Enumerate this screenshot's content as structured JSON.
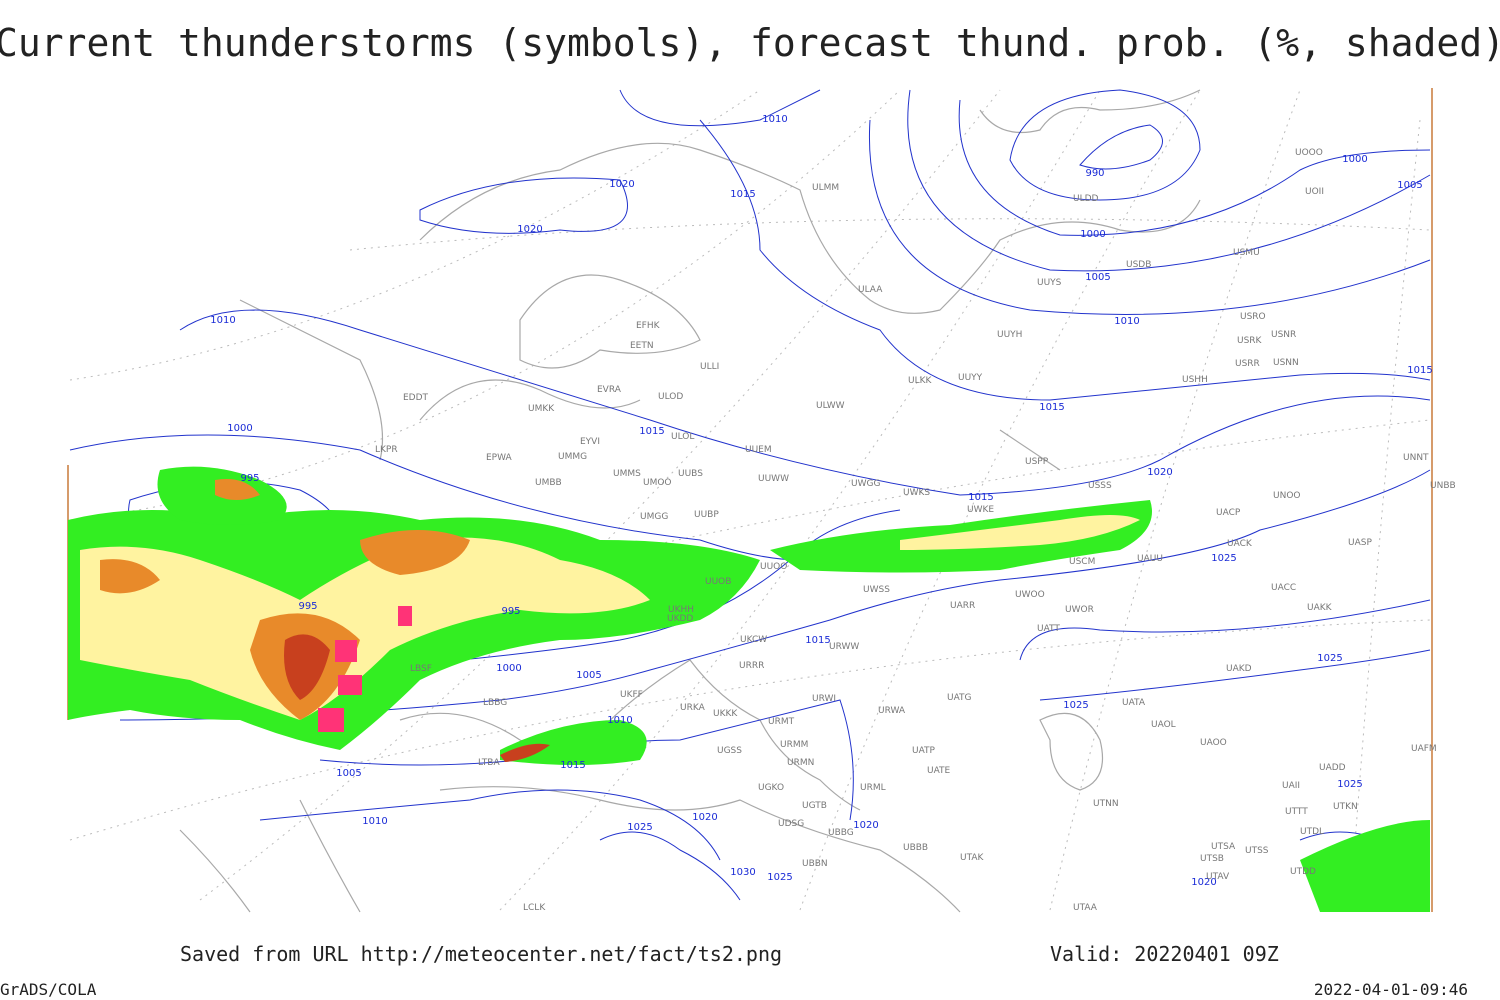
{
  "title": "Current thunderstorms (symbols), forecast thund. prob. (%, shaded)",
  "footer": {
    "saved": "Saved from URL http://meteocenter.net/fact/ts2.png",
    "valid": "Valid: 20220401 09Z",
    "software": "GrADS/COLA",
    "timestamp": "2022-04-01-09:46"
  },
  "isobar_labels": [
    1010,
    1020,
    1015,
    1020,
    990,
    1000,
    1005,
    1000,
    1005,
    1010,
    1015,
    1015,
    1010,
    1000,
    995,
    1015,
    1015,
    1020,
    1025,
    995,
    995,
    1015,
    1000,
    1005,
    1025,
    1025,
    1010,
    1005,
    1015,
    1010,
    1020,
    1025,
    1020,
    1025,
    1030,
    1025,
    1020
  ],
  "stations": [
    "ULMM",
    "ULAA",
    "EFHK",
    "EETN",
    "ULLI",
    "EVRA",
    "ULOD",
    "EDDT",
    "UMKK",
    "ULWW",
    "ULKK",
    "UUYY",
    "UUYH",
    "UUYS",
    "USDB",
    "USMU",
    "UOOO",
    "UOII",
    "ULDD",
    "USRO",
    "USNR",
    "USRK",
    "USRR",
    "USNN",
    "USHH",
    "USPP",
    "UUEM",
    "EYVI",
    "EPWA",
    "UMMG",
    "ULOL",
    "LKPR",
    "UMMS",
    "UUBS",
    "UMOO",
    "UUWW",
    "UWGG",
    "UWKS",
    "USSS",
    "UNNT",
    "UNBB",
    "UMBB",
    "UNOO",
    "UWKE",
    "UACP",
    "UMGG",
    "UUBP",
    "UACK",
    "UASP",
    "UAUU",
    "USCM",
    "UUOO",
    "UUOB",
    "UWSS",
    "UACC",
    "UWOO",
    "UARR",
    "UAKK",
    "UWOR",
    "UKHH",
    "UKDD",
    "UATT",
    "UKCW",
    "URWW",
    "URRR",
    "UAKD",
    "LBSF",
    "UKFF",
    "URKA",
    "URWI",
    "UATG",
    "UATA",
    "UKKK",
    "LBBG",
    "URMT",
    "URWA",
    "UAOL",
    "UAOO",
    "URMM",
    "UGSS",
    "UATP",
    "URMN",
    "LTBA",
    "UATE",
    "UADD",
    "UAFM",
    "URML",
    "UGKO",
    "UAII",
    "UGTB",
    "UTNN",
    "UTTT",
    "UTKN",
    "UDSG",
    "UBBG",
    "UTDL",
    "UBBB",
    "UTSA",
    "UTSS",
    "UTAK",
    "UTSB",
    "UBBN",
    "UTDD",
    "UTAV",
    "UTAA",
    "LCLK"
  ]
}
